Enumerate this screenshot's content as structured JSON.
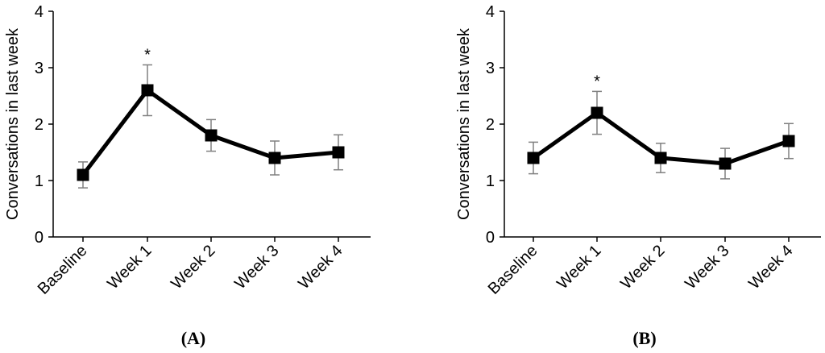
{
  "chart_data": [
    {
      "type": "line",
      "panel_label": "(A)",
      "title": "",
      "xlabel": "",
      "ylabel": "Conversations in last week",
      "categories": [
        "Baseline",
        "Week 1",
        "Week 2",
        "Week 3",
        "Week 4"
      ],
      "values": [
        1.1,
        2.6,
        1.8,
        1.4,
        1.5
      ],
      "error": [
        0.23,
        0.45,
        0.28,
        0.3,
        0.31
      ],
      "annotations": [
        {
          "category": "Week 1",
          "text": "*"
        }
      ],
      "ylim": [
        0,
        4
      ],
      "yticks": [
        "0",
        "1",
        "2",
        "3",
        "4"
      ],
      "grid": false,
      "marker": "square",
      "line_color": "#000000",
      "error_color": "#808080"
    },
    {
      "type": "line",
      "panel_label": "(B)",
      "title": "",
      "xlabel": "",
      "ylabel": "Conversations in last week",
      "categories": [
        "Baseline",
        "Week 1",
        "Week 2",
        "Week 3",
        "Week 4"
      ],
      "values": [
        1.4,
        2.2,
        1.4,
        1.3,
        1.7
      ],
      "error": [
        0.28,
        0.38,
        0.26,
        0.27,
        0.31
      ],
      "annotations": [
        {
          "category": "Week 1",
          "text": "*"
        }
      ],
      "ylim": [
        0,
        4
      ],
      "yticks": [
        "0",
        "1",
        "2",
        "3",
        "4"
      ],
      "grid": false,
      "marker": "square",
      "line_color": "#000000",
      "error_color": "#808080"
    }
  ]
}
